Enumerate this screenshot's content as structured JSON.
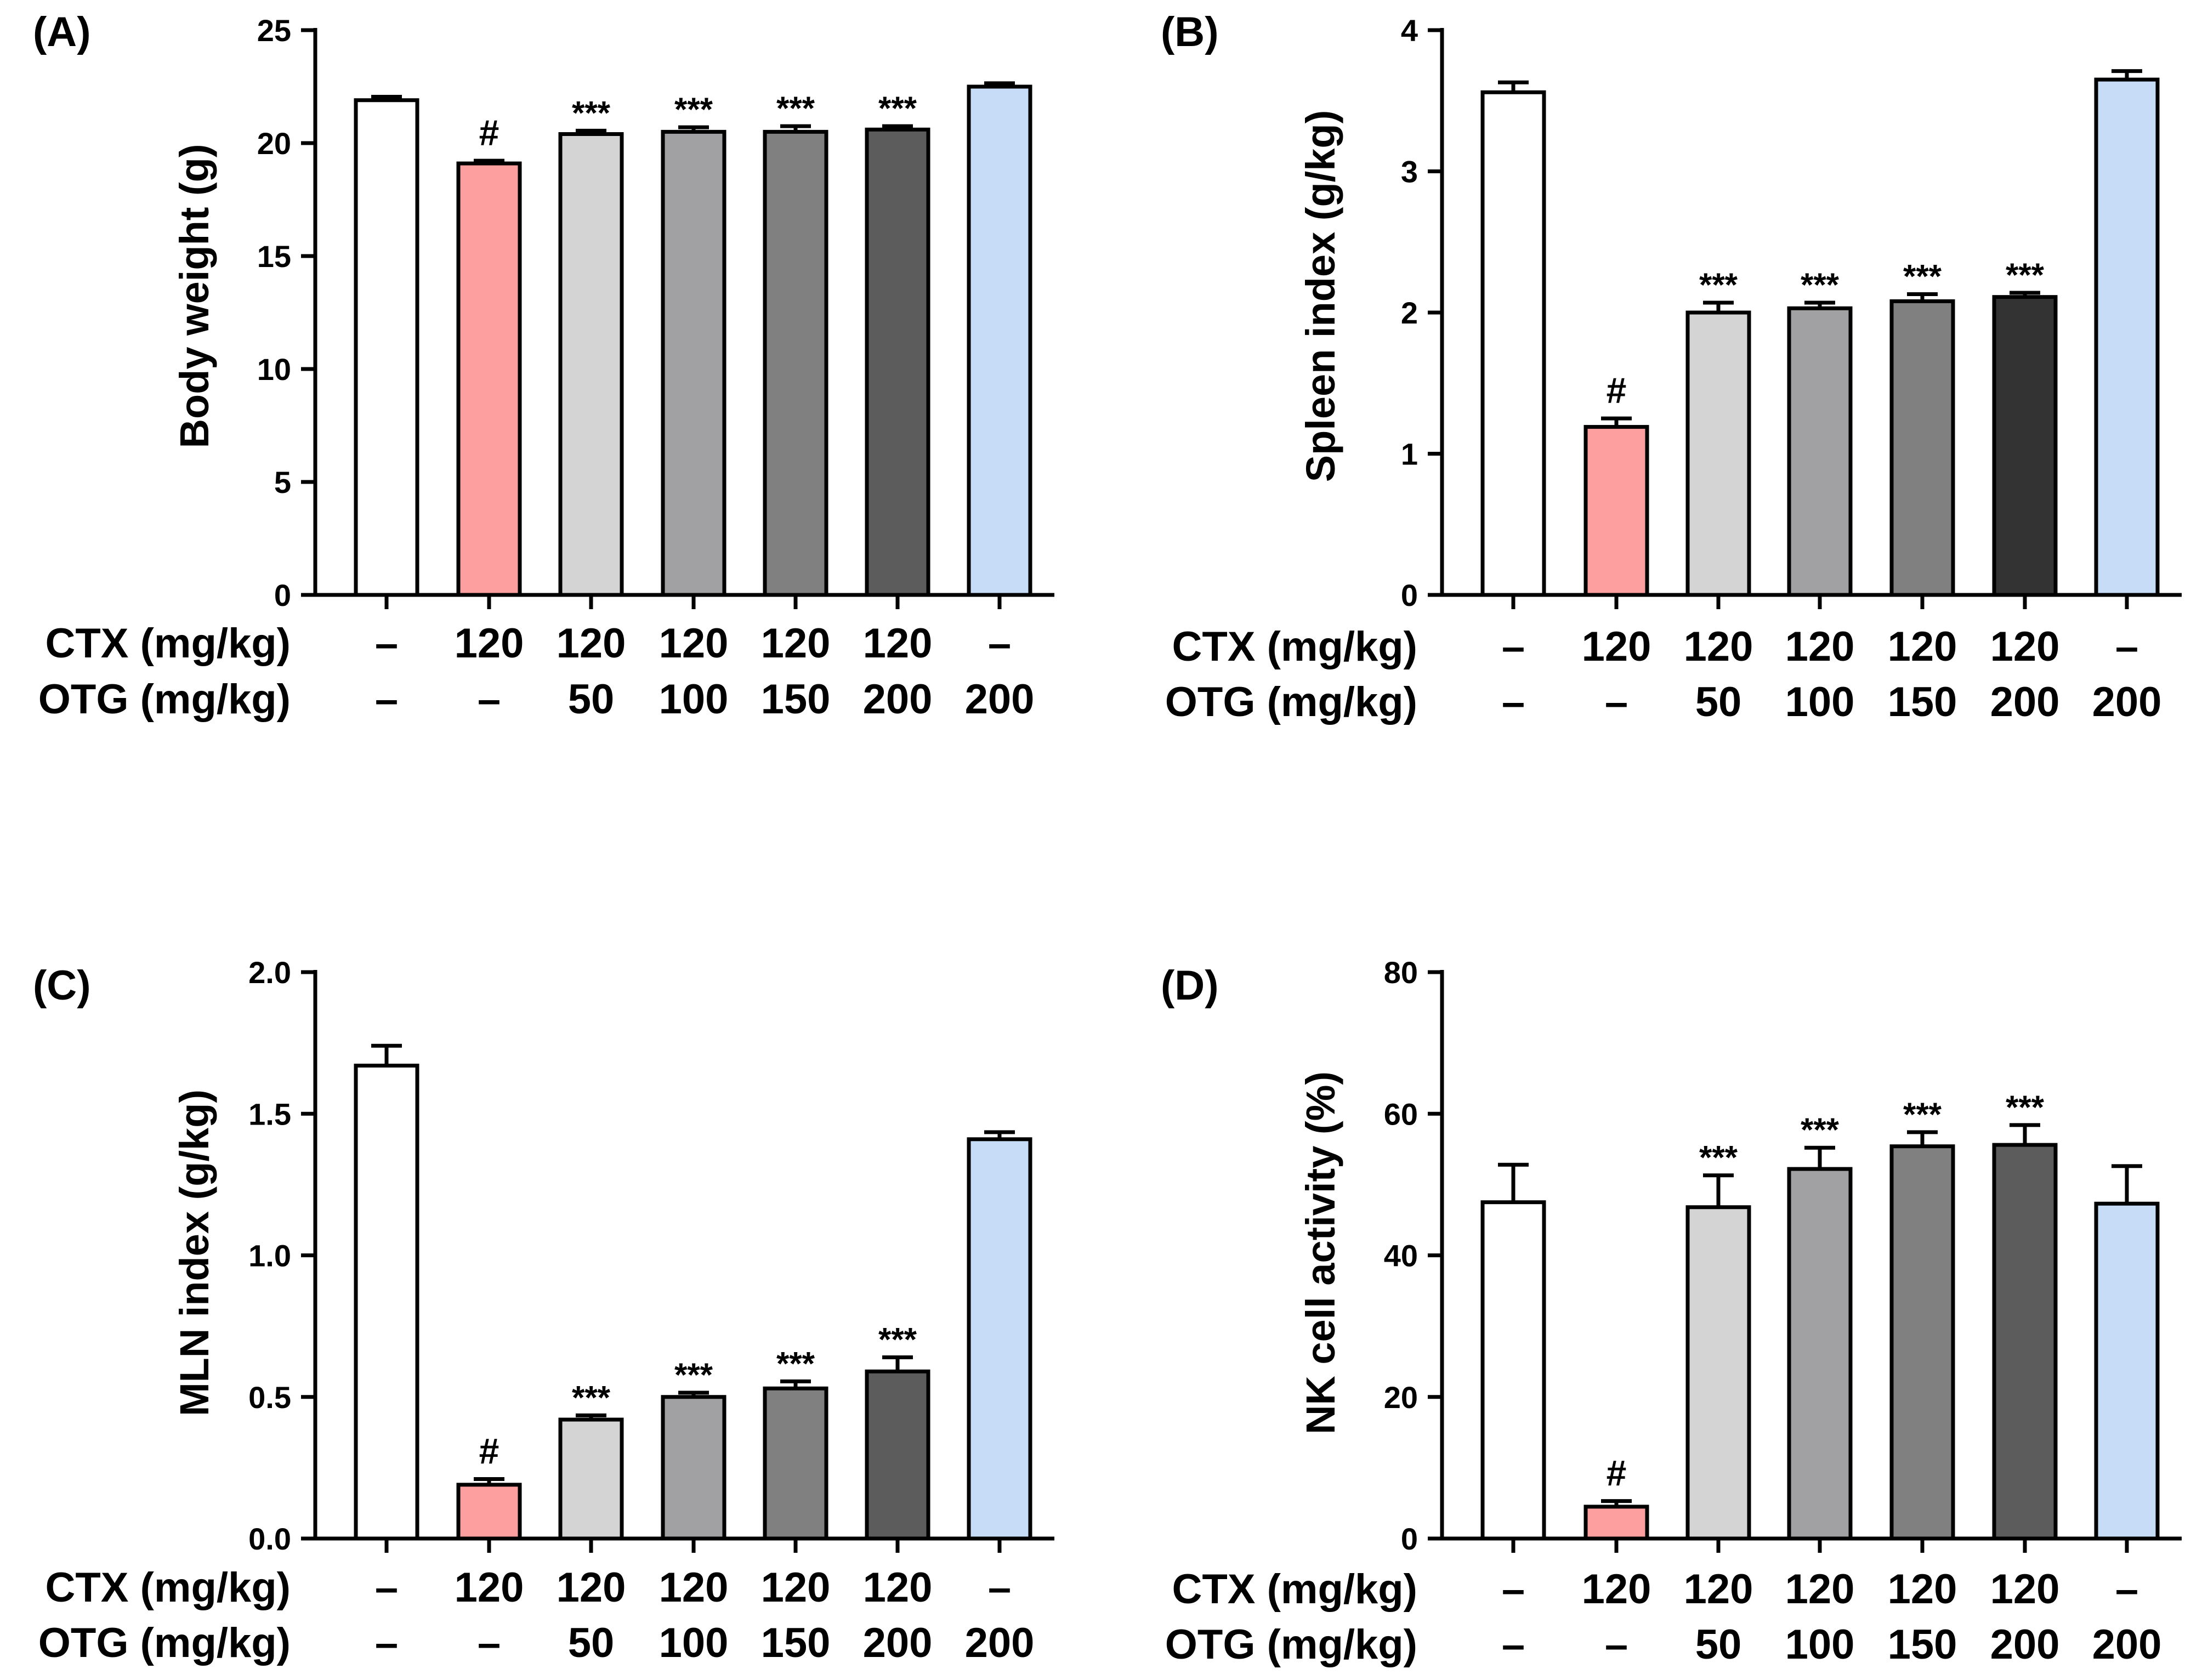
{
  "figure": {
    "background": "#ffffff"
  },
  "chart_data": [
    {
      "type": "bar",
      "panel": "(A)",
      "ylabel": "Body weight (g)",
      "ylim": [
        0,
        25
      ],
      "yticks": [
        "0",
        "5",
        "10",
        "15",
        "20",
        "25"
      ],
      "row_labels": [
        "CTX (mg/kg)",
        "OTG (mg/kg)"
      ],
      "ctx": [
        "–",
        "120",
        "120",
        "120",
        "120",
        "120",
        "–"
      ],
      "otg": [
        "–",
        "–",
        "50",
        "100",
        "150",
        "200",
        "200"
      ],
      "values": [
        21.9,
        19.1,
        20.4,
        20.5,
        20.5,
        20.6,
        22.5
      ],
      "errors": [
        0.15,
        0.12,
        0.15,
        0.2,
        0.25,
        0.15,
        0.15
      ],
      "marks": [
        "",
        "#",
        "***",
        "***",
        "***",
        "***",
        ""
      ],
      "colors": [
        "#ffffff",
        "#fe9f9f",
        "#d4d4d4",
        "#a1a1a4",
        "#808080",
        "#5c5c5c",
        "#c6dcf7"
      ]
    },
    {
      "type": "bar",
      "panel": "(B)",
      "ylabel": "Spleen index (g/kg)",
      "ylim": [
        0,
        4
      ],
      "yticks": [
        "0",
        "1",
        "2",
        "3",
        "4"
      ],
      "row_labels": [
        "CTX (mg/kg)",
        "OTG (mg/kg)"
      ],
      "ctx": [
        "–",
        "120",
        "120",
        "120",
        "120",
        "120",
        "–"
      ],
      "otg": [
        "–",
        "–",
        "50",
        "100",
        "150",
        "200",
        "200"
      ],
      "values": [
        3.56,
        1.19,
        2.0,
        2.03,
        2.08,
        2.11,
        3.65
      ],
      "errors": [
        0.07,
        0.06,
        0.07,
        0.04,
        0.05,
        0.03,
        0.06
      ],
      "marks": [
        "",
        "#",
        "***",
        "***",
        "***",
        "***",
        ""
      ],
      "colors": [
        "#ffffff",
        "#fe9f9f",
        "#d4d4d4",
        "#a1a1a4",
        "#808080",
        "#333333",
        "#c6dcf7"
      ]
    },
    {
      "type": "bar",
      "panel": "(C)",
      "ylabel": "MLN index (g/kg)",
      "ylim": [
        0,
        2.0
      ],
      "yticks": [
        "0.0",
        "0.5",
        "1.0",
        "1.5",
        "2.0"
      ],
      "row_labels": [
        "CTX (mg/kg)",
        "OTG (mg/kg)"
      ],
      "ctx": [
        "–",
        "120",
        "120",
        "120",
        "120",
        "120",
        "–"
      ],
      "otg": [
        "–",
        "–",
        "50",
        "100",
        "150",
        "200",
        "200"
      ],
      "values": [
        1.67,
        0.19,
        0.42,
        0.5,
        0.53,
        0.59,
        1.41
      ],
      "errors": [
        0.07,
        0.02,
        0.015,
        0.015,
        0.025,
        0.05,
        0.025
      ],
      "marks": [
        "",
        "#",
        "***",
        "***",
        "***",
        "***",
        ""
      ],
      "colors": [
        "#ffffff",
        "#fe9f9f",
        "#d4d4d4",
        "#a1a1a4",
        "#808080",
        "#5c5c5c",
        "#c6dcf7"
      ]
    },
    {
      "type": "bar",
      "panel": "(D)",
      "ylabel": "NK cell activity (%)",
      "ylim": [
        0,
        80
      ],
      "yticks": [
        "0",
        "20",
        "40",
        "60",
        "80"
      ],
      "row_labels": [
        "CTX (mg/kg)",
        "OTG (mg/kg)"
      ],
      "ctx": [
        "–",
        "120",
        "120",
        "120",
        "120",
        "120",
        "–"
      ],
      "otg": [
        "–",
        "–",
        "50",
        "100",
        "150",
        "200",
        "200"
      ],
      "values": [
        47.5,
        4.5,
        46.8,
        52.2,
        55.4,
        55.6,
        47.3
      ],
      "errors": [
        5.3,
        0.8,
        4.5,
        3.0,
        2.0,
        2.8,
        5.3
      ],
      "marks": [
        "",
        "#",
        "***",
        "***",
        "***",
        "***",
        ""
      ],
      "colors": [
        "#ffffff",
        "#fe9f9f",
        "#d4d4d4",
        "#a1a1a4",
        "#808080",
        "#5c5c5c",
        "#c6dcf7"
      ]
    }
  ]
}
